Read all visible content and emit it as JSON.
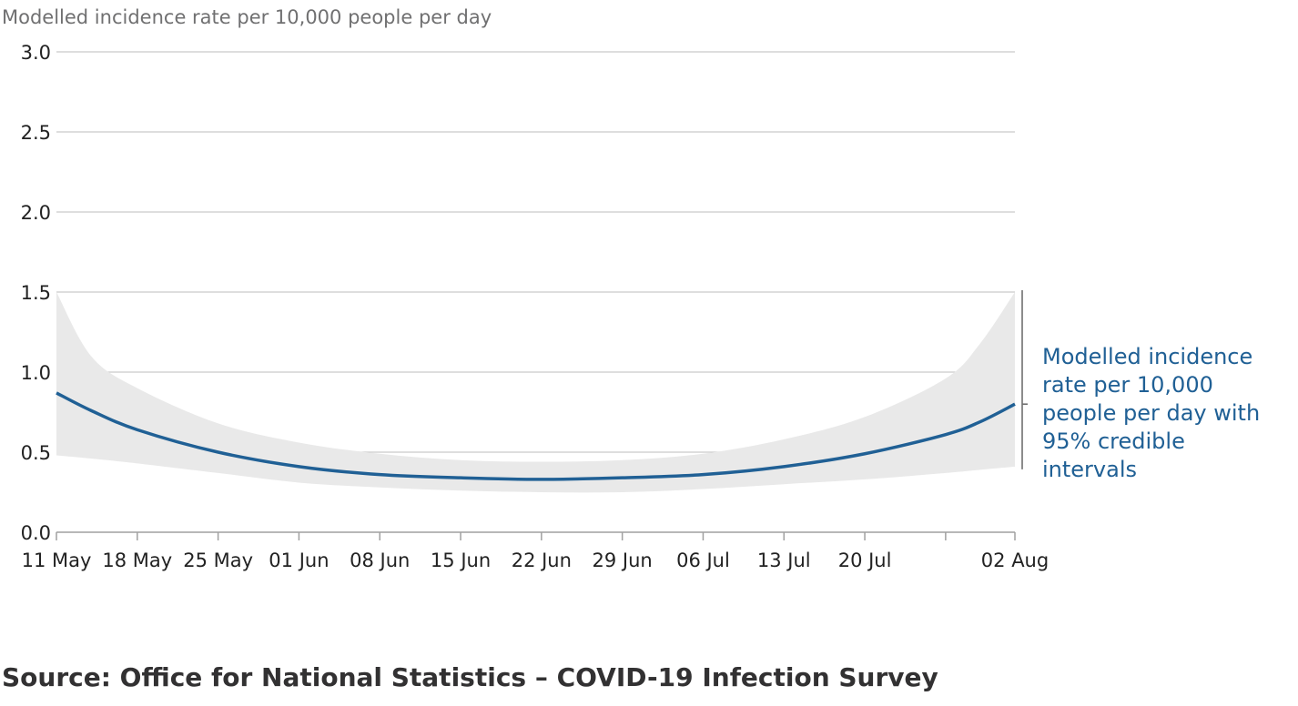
{
  "chart_data": {
    "type": "area",
    "title": "",
    "ylabel": "Modelled incidence rate per 10,000 people per day",
    "xlabel": "",
    "ylim": [
      0,
      3.0
    ],
    "yticks": [
      "0.0",
      "0.5",
      "1.0",
      "1.5",
      "2.0",
      "2.5",
      "3.0"
    ],
    "ytick_values": [
      0,
      0.5,
      1.0,
      1.5,
      2.0,
      2.5,
      3.0
    ],
    "grid": true,
    "xlim_days": [
      0,
      83
    ],
    "xticks": [
      {
        "label": "11 May",
        "day": 0
      },
      {
        "label": "18 May",
        "day": 7
      },
      {
        "label": "25 May",
        "day": 14
      },
      {
        "label": "01 Jun",
        "day": 21
      },
      {
        "label": "08 Jun",
        "day": 28
      },
      {
        "label": "15 Jun",
        "day": 35
      },
      {
        "label": "22 Jun",
        "day": 42
      },
      {
        "label": "29 Jun",
        "day": 49
      },
      {
        "label": "06 Jul",
        "day": 56
      },
      {
        "label": "13 Jul",
        "day": 63
      },
      {
        "label": "20 Jul",
        "day": 70
      },
      {
        "label": "",
        "day": 77
      },
      {
        "label": "02 Aug",
        "day": 83
      }
    ],
    "series": [
      {
        "name": "Modelled incidence rate per 10,000 people per day with 95% credible intervals",
        "color": "#206095",
        "band_color": "#e9e9e9",
        "x": [
          0,
          3,
          7,
          14,
          21,
          28,
          35,
          42,
          49,
          56,
          63,
          70,
          77,
          80,
          83
        ],
        "values": [
          0.87,
          0.76,
          0.64,
          0.5,
          0.41,
          0.36,
          0.34,
          0.33,
          0.34,
          0.36,
          0.41,
          0.49,
          0.61,
          0.69,
          0.8
        ],
        "lower": [
          0.48,
          0.46,
          0.43,
          0.37,
          0.31,
          0.28,
          0.26,
          0.25,
          0.25,
          0.27,
          0.3,
          0.33,
          0.37,
          0.39,
          0.41
        ],
        "upper": [
          1.5,
          1.1,
          0.9,
          0.68,
          0.56,
          0.49,
          0.45,
          0.44,
          0.45,
          0.49,
          0.58,
          0.72,
          0.96,
          1.18,
          1.5
        ]
      }
    ],
    "annotation": {
      "lines": [
        "Modelled incidence",
        "rate per 10,000",
        "people per day with",
        "95% credible",
        "intervals"
      ]
    }
  },
  "source": "Source: Office for National Statistics – COVID-19 Infection Survey"
}
